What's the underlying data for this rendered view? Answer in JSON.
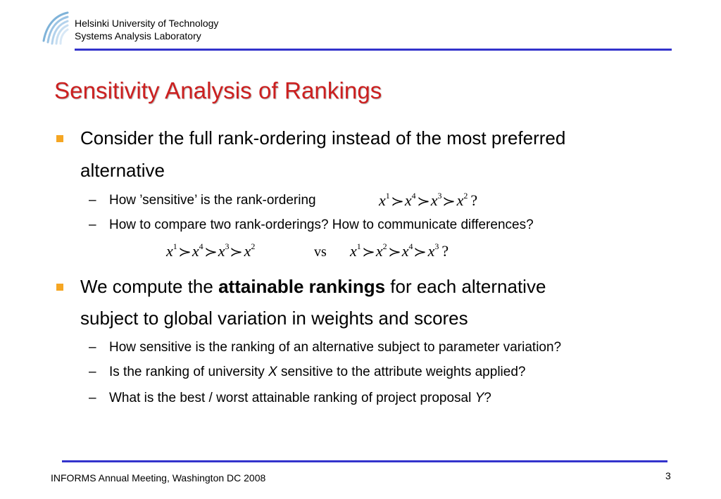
{
  "header": {
    "line1": "Helsinki University of Technology",
    "line2": "Systems Analysis Laboratory"
  },
  "title": "Sensitivity Analysis of Rankings",
  "bullets": [
    {
      "text_line1": "Consider the full rank-ordering instead of the most preferred",
      "text_line2": "alternative",
      "sub": [
        {
          "text": "How ’sensitive’ is the rank-ordering"
        },
        {
          "text": "How to compare two rank-orderings? How to communicate differences?"
        }
      ]
    },
    {
      "prefix": "We compute the ",
      "bold": "attainable rankings",
      "suffix": " for each alternative",
      "text_line2": "subject to global variation in weights and scores",
      "sub": [
        {
          "text": "How sensitive is the ranking of an alternative subject to parameter variation?"
        },
        {
          "prefix": "Is the ranking of university ",
          "italic": "X",
          "suffix": " sensitive to the attribute weights applied?"
        },
        {
          "prefix": "What is the best / worst attainable ranking of project proposal ",
          "italic": "Y",
          "suffix": "?"
        }
      ]
    }
  ],
  "formulas": {
    "var": "x",
    "rel": "≻",
    "q": "?",
    "vs": "vs",
    "f1": [
      "1",
      "4",
      "3",
      "2"
    ],
    "f2": [
      "1",
      "4",
      "3",
      "2"
    ],
    "f3": [
      "1",
      "2",
      "4",
      "3"
    ]
  },
  "footer": {
    "text": "INFORMS Annual Meeting, Washington DC 2008",
    "page": "3"
  },
  "colors": {
    "title": "#cc1f1f",
    "rule": "#3333cc",
    "bullet": "#f5a623"
  }
}
